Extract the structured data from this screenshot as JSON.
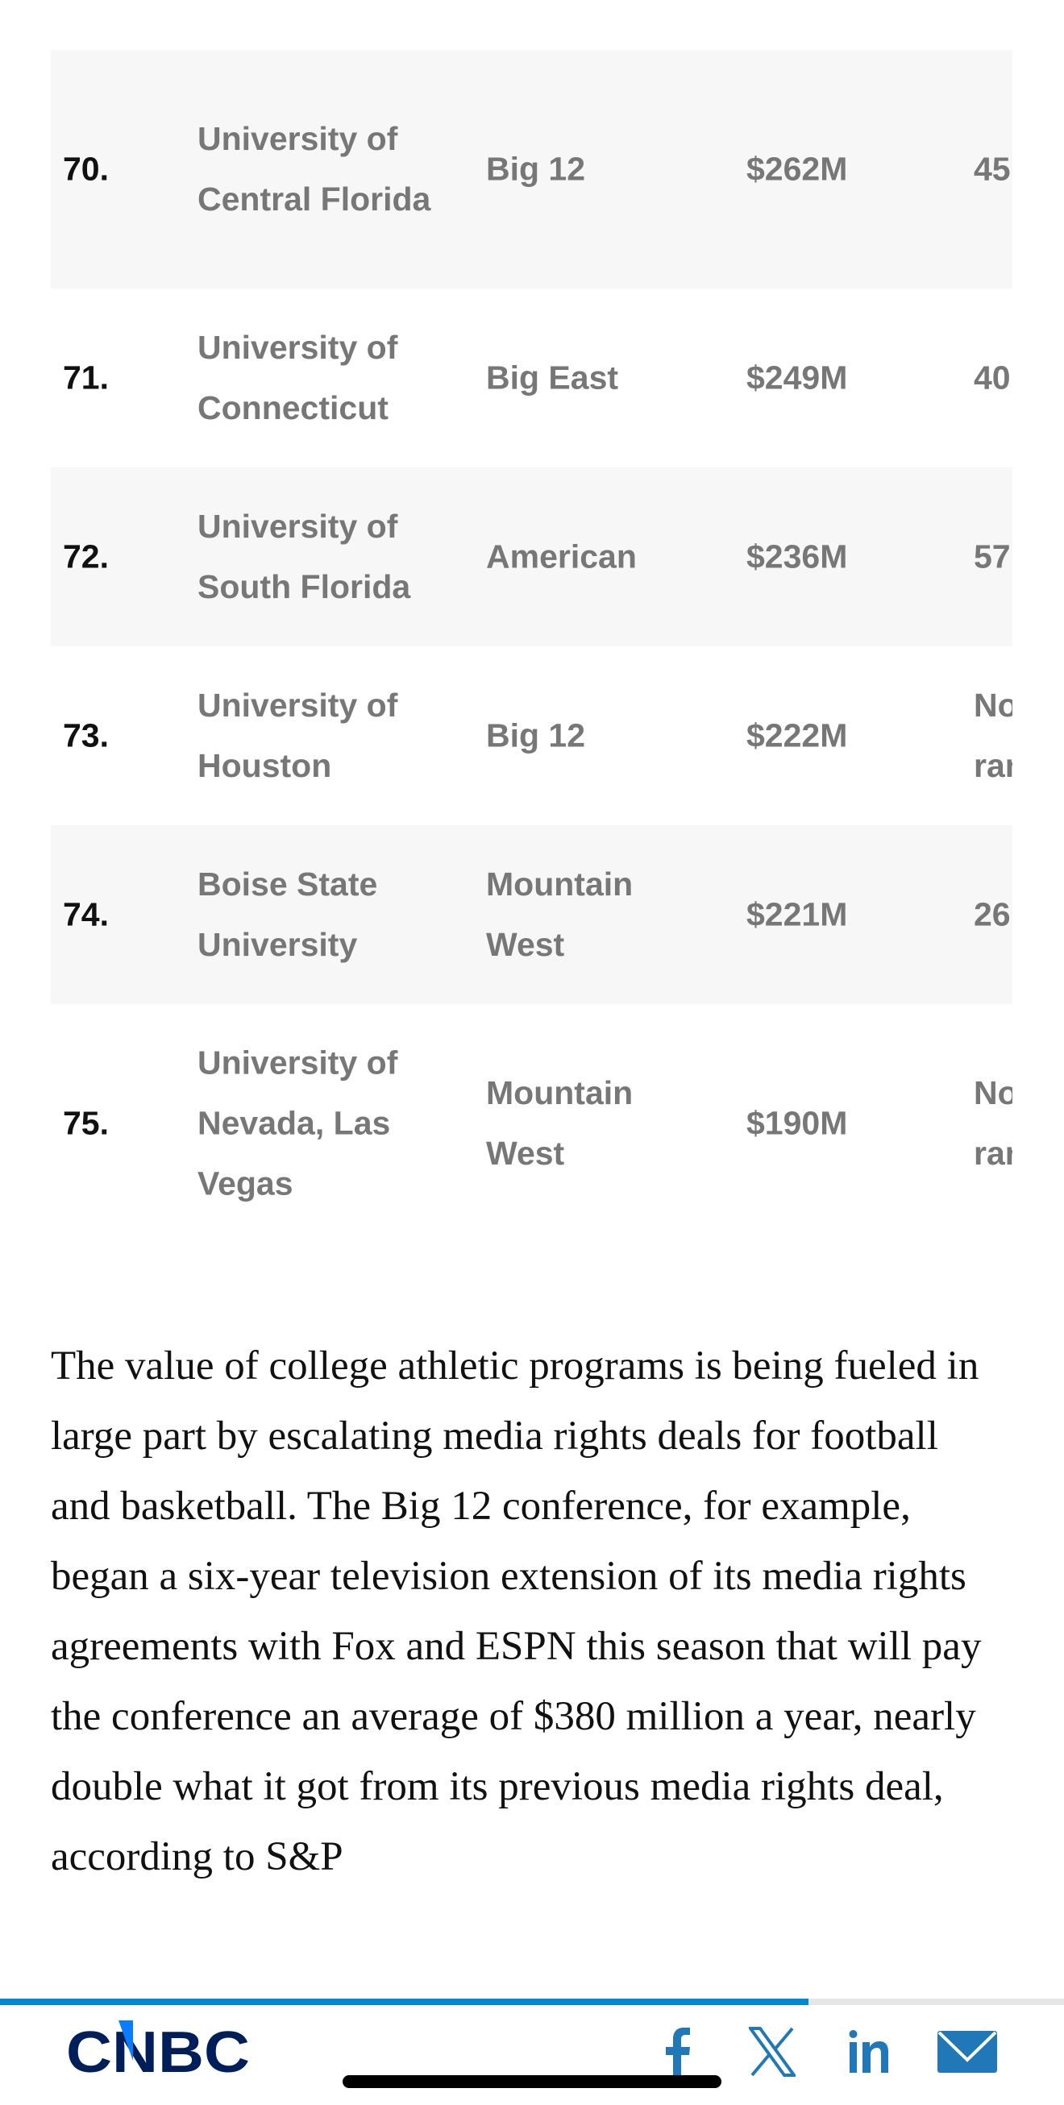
{
  "table": {
    "rows": [
      {
        "rank": "70.",
        "school": "University of Central Florida",
        "conference": "Big 12",
        "value": "$262M",
        "last": "45",
        "lines": 3
      },
      {
        "rank": "71.",
        "school": "University of Connecticut",
        "conference": "Big East",
        "value": "$249M",
        "last": "40",
        "lines": 2
      },
      {
        "rank": "72.",
        "school": "University of South Florida",
        "conference": "American",
        "value": "$236M",
        "last": "57",
        "lines": 2
      },
      {
        "rank": "73.",
        "school": "University of Houston",
        "conference": "Big 12",
        "value": "$222M",
        "last": "Not ranked",
        "lines": 2
      },
      {
        "rank": "74.",
        "school": "Boise State University",
        "conference": "Mountain West",
        "value": "$221M",
        "last": "26",
        "lines": 2
      },
      {
        "rank": "75.",
        "school": "University of Nevada, Las Vegas",
        "conference": "Mountain West",
        "value": "$190M",
        "last": "Not ranked",
        "lines": 3
      }
    ]
  },
  "article": {
    "paragraph": "The value of college athletic programs is being fueled in large part by escalating media rights deals for football and basketball. The Big 12 conference, for example, began a six-year television extension of its media rights agreements with Fox and ESPN this season that will pay the conference an average of $380 million a year, nearly double what it got from its previous media rights deal, according to S&P"
  },
  "footer": {
    "logo": "CNBC",
    "reading_progress_percent": 76,
    "share_icons": [
      "facebook-icon",
      "x-icon",
      "linkedin-icon",
      "email-icon"
    ],
    "colors": {
      "progress": "#0088d1",
      "logo": "#001e5a",
      "logo_accent": "#0a7cff",
      "icons": "#2178b8"
    }
  }
}
